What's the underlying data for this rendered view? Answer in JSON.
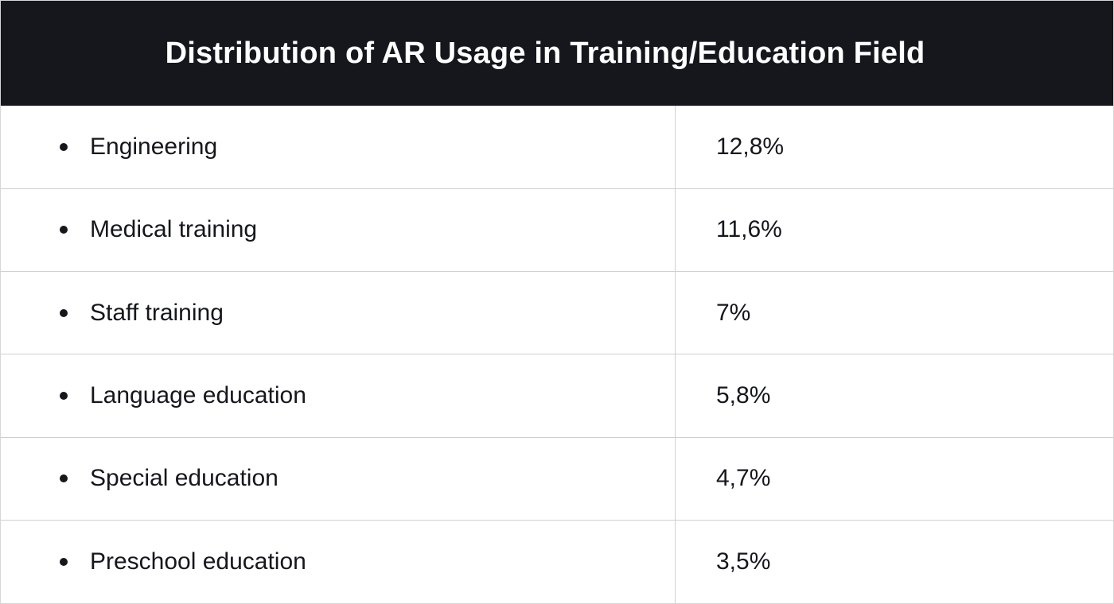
{
  "chart_data": {
    "type": "table",
    "title": "Distribution of AR Usage in Training/Education Field",
    "rows": [
      {
        "category": "Engineering",
        "value": 12.8,
        "value_label": "12,8%"
      },
      {
        "category": "Medical training",
        "value": 11.6,
        "value_label": "11,6%"
      },
      {
        "category": "Staff training",
        "value": 7,
        "value_label": "7%"
      },
      {
        "category": "Language education",
        "value": 5.8,
        "value_label": "5,8%"
      },
      {
        "category": "Special education",
        "value": 4.7,
        "value_label": "4,7%"
      },
      {
        "category": "Preschool education",
        "value": 3.5,
        "value_label": "3,5%"
      }
    ]
  },
  "colors": {
    "header_background": "#16171d",
    "header_text": "#ffffff",
    "body_text": "#16171d",
    "grid_line": "#cfcfcf"
  }
}
